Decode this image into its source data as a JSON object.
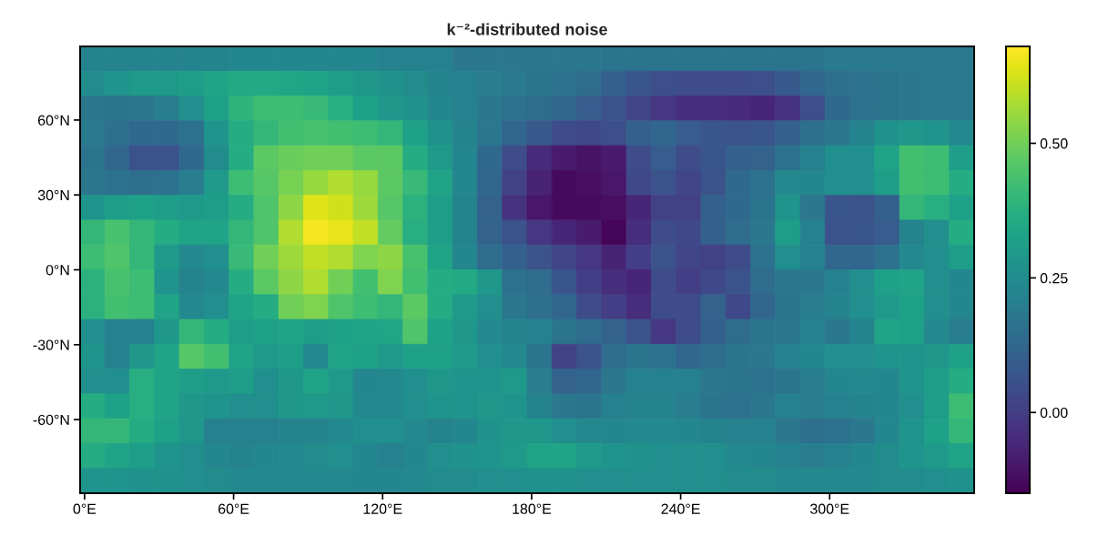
{
  "chart_data": {
    "type": "heatmap",
    "title": "k⁻²-distributed noise",
    "xlim": [
      -1.8,
      358.2
    ],
    "ylim": [
      -89.5,
      89.5
    ],
    "xticks": [
      {
        "value": 0,
        "label": "0°E"
      },
      {
        "value": 60,
        "label": "60°E"
      },
      {
        "value": 120,
        "label": "120°E"
      },
      {
        "value": 180,
        "label": "180°E"
      },
      {
        "value": 240,
        "label": "240°E"
      },
      {
        "value": 300,
        "label": "300°E"
      }
    ],
    "yticks": [
      {
        "value": -60,
        "label": "-60°N"
      },
      {
        "value": -30,
        "label": "-30°N"
      },
      {
        "value": 0,
        "label": "0°N"
      },
      {
        "value": 30,
        "label": "30°N"
      },
      {
        "value": 60,
        "label": "60°N"
      }
    ],
    "clim": [
      -0.15,
      0.68
    ],
    "cticks": [
      {
        "value": 0,
        "label": "0.00"
      },
      {
        "value": 0.25,
        "label": "0.25"
      },
      {
        "value": 0.5,
        "label": "0.50"
      }
    ],
    "cells": [
      [
        0.22,
        0.22,
        0.22,
        0.22,
        0.22,
        0.22,
        0.23,
        0.23,
        0.23,
        0.23,
        0.23,
        0.23,
        0.21,
        0.21,
        0.21,
        0.18,
        0.18,
        0.18,
        0.18,
        0.18,
        0.18,
        0.17,
        0.17,
        0.17,
        0.17,
        0.17,
        0.17,
        0.17,
        0.17,
        0.17,
        0.19,
        0.19,
        0.19,
        0.19,
        0.19,
        0.19
      ],
      [
        0.25,
        0.28,
        0.3,
        0.3,
        0.31,
        0.33,
        0.35,
        0.35,
        0.34,
        0.33,
        0.31,
        0.29,
        0.27,
        0.25,
        0.22,
        0.21,
        0.2,
        0.19,
        0.17,
        0.16,
        0.14,
        0.1,
        0.07,
        0.05,
        0.04,
        0.04,
        0.04,
        0.05,
        0.08,
        0.12,
        0.15,
        0.16,
        0.17,
        0.18,
        0.19,
        0.19
      ],
      [
        0.18,
        0.17,
        0.18,
        0.2,
        0.26,
        0.32,
        0.39,
        0.42,
        0.42,
        0.41,
        0.37,
        0.32,
        0.29,
        0.27,
        0.23,
        0.21,
        0.18,
        0.16,
        0.14,
        0.12,
        0.09,
        0.06,
        0.02,
        -0.02,
        -0.04,
        -0.04,
        -0.05,
        -0.06,
        -0.03,
        0.05,
        0.13,
        0.16,
        0.17,
        0.18,
        0.19,
        0.19
      ],
      [
        0.19,
        0.15,
        0.13,
        0.13,
        0.16,
        0.28,
        0.36,
        0.4,
        0.43,
        0.44,
        0.43,
        0.42,
        0.4,
        0.32,
        0.27,
        0.22,
        0.18,
        0.12,
        0.08,
        0.04,
        0.03,
        0.05,
        0.1,
        0.12,
        0.09,
        0.07,
        0.06,
        0.07,
        0.1,
        0.15,
        0.18,
        0.22,
        0.27,
        0.29,
        0.28,
        0.24
      ],
      [
        0.17,
        0.12,
        0.06,
        0.06,
        0.13,
        0.25,
        0.36,
        0.47,
        0.49,
        0.5,
        0.5,
        0.47,
        0.47,
        0.36,
        0.3,
        0.23,
        0.13,
        0.04,
        -0.05,
        -0.09,
        -0.11,
        -0.09,
        0.04,
        0.09,
        0.04,
        0.07,
        0.1,
        0.11,
        0.16,
        0.21,
        0.26,
        0.26,
        0.33,
        0.43,
        0.42,
        0.31
      ],
      [
        0.18,
        0.16,
        0.15,
        0.16,
        0.2,
        0.3,
        0.42,
        0.46,
        0.51,
        0.55,
        0.58,
        0.55,
        0.47,
        0.41,
        0.33,
        0.23,
        0.12,
        0.01,
        -0.07,
        -0.13,
        -0.12,
        -0.1,
        0.03,
        0.06,
        0.02,
        0.06,
        0.13,
        0.16,
        0.24,
        0.23,
        0.26,
        0.26,
        0.31,
        0.43,
        0.42,
        0.36
      ],
      [
        0.28,
        0.31,
        0.32,
        0.31,
        0.3,
        0.31,
        0.36,
        0.45,
        0.54,
        0.64,
        0.62,
        0.56,
        0.46,
        0.38,
        0.31,
        0.22,
        0.11,
        -0.03,
        -0.1,
        -0.13,
        -0.13,
        -0.12,
        -0.06,
        0.01,
        0.01,
        0.1,
        0.13,
        0.17,
        0.28,
        0.18,
        0.07,
        0.06,
        0.1,
        0.4,
        0.37,
        0.32
      ],
      [
        0.4,
        0.44,
        0.4,
        0.36,
        0.33,
        0.33,
        0.4,
        0.45,
        0.58,
        0.67,
        0.65,
        0.6,
        0.48,
        0.37,
        0.31,
        0.22,
        0.11,
        0.06,
        -0.02,
        -0.06,
        -0.09,
        -0.14,
        -0.04,
        0.04,
        0.03,
        0.1,
        0.14,
        0.18,
        0.31,
        0.21,
        0.06,
        0.07,
        0.09,
        0.22,
        0.26,
        0.36
      ],
      [
        0.42,
        0.45,
        0.4,
        0.3,
        0.24,
        0.26,
        0.41,
        0.5,
        0.56,
        0.6,
        0.58,
        0.52,
        0.54,
        0.44,
        0.33,
        0.23,
        0.14,
        0.1,
        0.06,
        0.02,
        -0.02,
        -0.07,
        0.0,
        0.06,
        0.02,
        0.01,
        0.04,
        0.16,
        0.26,
        0.21,
        0.12,
        0.12,
        0.16,
        0.24,
        0.26,
        0.31
      ],
      [
        0.38,
        0.44,
        0.42,
        0.28,
        0.22,
        0.24,
        0.36,
        0.47,
        0.54,
        0.58,
        0.5,
        0.43,
        0.52,
        0.43,
        0.36,
        0.35,
        0.29,
        0.16,
        0.14,
        0.07,
        0.0,
        -0.04,
        -0.06,
        0.04,
        0.0,
        0.03,
        0.06,
        0.14,
        0.18,
        0.18,
        0.21,
        0.26,
        0.32,
        0.33,
        0.26,
        0.23
      ],
      [
        0.38,
        0.43,
        0.42,
        0.33,
        0.24,
        0.26,
        0.33,
        0.36,
        0.5,
        0.52,
        0.45,
        0.42,
        0.4,
        0.47,
        0.36,
        0.3,
        0.26,
        0.18,
        0.15,
        0.12,
        0.04,
        0.0,
        -0.04,
        0.04,
        0.04,
        0.11,
        0.03,
        0.12,
        0.17,
        0.2,
        0.22,
        0.26,
        0.3,
        0.32,
        0.26,
        0.23
      ],
      [
        0.26,
        0.21,
        0.21,
        0.29,
        0.4,
        0.36,
        0.31,
        0.32,
        0.33,
        0.31,
        0.32,
        0.33,
        0.34,
        0.45,
        0.32,
        0.29,
        0.24,
        0.22,
        0.21,
        0.17,
        0.14,
        0.11,
        0.06,
        -0.02,
        0.04,
        0.1,
        0.14,
        0.17,
        0.18,
        0.21,
        0.18,
        0.22,
        0.33,
        0.32,
        0.24,
        0.2
      ],
      [
        0.28,
        0.21,
        0.29,
        0.33,
        0.46,
        0.43,
        0.33,
        0.3,
        0.31,
        0.24,
        0.33,
        0.32,
        0.3,
        0.32,
        0.32,
        0.3,
        0.26,
        0.24,
        0.17,
        0.01,
        0.06,
        0.14,
        0.17,
        0.16,
        0.12,
        0.14,
        0.17,
        0.18,
        0.21,
        0.23,
        0.26,
        0.26,
        0.28,
        0.28,
        0.29,
        0.32
      ],
      [
        0.26,
        0.26,
        0.37,
        0.33,
        0.31,
        0.3,
        0.31,
        0.26,
        0.29,
        0.33,
        0.3,
        0.23,
        0.24,
        0.26,
        0.29,
        0.28,
        0.28,
        0.3,
        0.2,
        0.11,
        0.12,
        0.18,
        0.21,
        0.21,
        0.21,
        0.18,
        0.17,
        0.16,
        0.17,
        0.2,
        0.23,
        0.24,
        0.23,
        0.28,
        0.31,
        0.36
      ],
      [
        0.36,
        0.32,
        0.37,
        0.33,
        0.29,
        0.28,
        0.26,
        0.26,
        0.29,
        0.3,
        0.29,
        0.24,
        0.24,
        0.26,
        0.28,
        0.28,
        0.29,
        0.28,
        0.22,
        0.18,
        0.17,
        0.21,
        0.22,
        0.22,
        0.2,
        0.17,
        0.16,
        0.18,
        0.21,
        0.2,
        0.21,
        0.22,
        0.23,
        0.26,
        0.31,
        0.42
      ],
      [
        0.4,
        0.4,
        0.36,
        0.32,
        0.29,
        0.21,
        0.21,
        0.21,
        0.22,
        0.22,
        0.24,
        0.26,
        0.26,
        0.24,
        0.22,
        0.23,
        0.27,
        0.29,
        0.29,
        0.26,
        0.24,
        0.23,
        0.24,
        0.24,
        0.23,
        0.22,
        0.21,
        0.21,
        0.18,
        0.15,
        0.16,
        0.18,
        0.23,
        0.28,
        0.32,
        0.4
      ],
      [
        0.36,
        0.33,
        0.31,
        0.28,
        0.26,
        0.23,
        0.22,
        0.23,
        0.24,
        0.25,
        0.26,
        0.23,
        0.21,
        0.23,
        0.26,
        0.27,
        0.28,
        0.3,
        0.33,
        0.33,
        0.3,
        0.28,
        0.27,
        0.26,
        0.26,
        0.26,
        0.24,
        0.23,
        0.21,
        0.2,
        0.21,
        0.23,
        0.25,
        0.28,
        0.3,
        0.33
      ],
      [
        0.28,
        0.28,
        0.27,
        0.27,
        0.26,
        0.25,
        0.24,
        0.24,
        0.24,
        0.24,
        0.24,
        0.23,
        0.23,
        0.24,
        0.25,
        0.25,
        0.26,
        0.26,
        0.27,
        0.27,
        0.26,
        0.26,
        0.26,
        0.26,
        0.26,
        0.26,
        0.25,
        0.25,
        0.24,
        0.24,
        0.24,
        0.24,
        0.25,
        0.25,
        0.26,
        0.27
      ]
    ]
  }
}
